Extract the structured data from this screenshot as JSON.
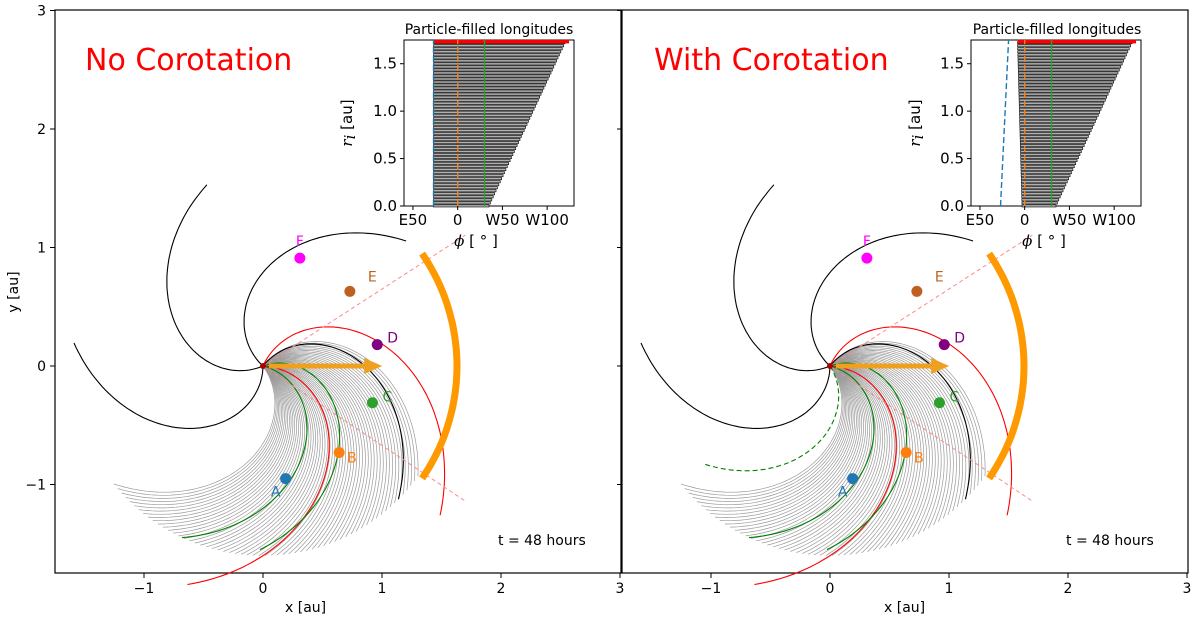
{
  "chart_data": [
    {
      "type": "scatter",
      "panel": "left",
      "title": "No Corotation",
      "xlabel": "x [au]",
      "ylabel": "y [au]",
      "xlim": [
        -1.75,
        3
      ],
      "ylim": [
        -1.75,
        3
      ],
      "xticks": [
        "-1",
        "0",
        "1",
        "2",
        "3"
      ],
      "yticks": [
        "-1",
        "0",
        "1",
        "2",
        "3"
      ],
      "time_label": "t = 48 hours",
      "colors": {
        "A": "#1f77b4",
        "B": "#ff7f0e",
        "C": "#2ca02c",
        "D": "#800080",
        "E": "#c06020",
        "F": "#ff00ff",
        "shock": "#ff9900",
        "field_red": "#ff0000",
        "field_green": "#008000"
      },
      "points": [
        {
          "label": "A",
          "x": 0.19,
          "y": -0.95,
          "color": "#1f77b4"
        },
        {
          "label": "B",
          "x": 0.64,
          "y": -0.73,
          "color": "#ff7f0e"
        },
        {
          "label": "C",
          "x": 0.92,
          "y": -0.31,
          "color": "#2ca02c"
        },
        {
          "label": "D",
          "x": 0.96,
          "y": 0.18,
          "color": "#800080"
        },
        {
          "label": "E",
          "x": 0.73,
          "y": 0.63,
          "color": "#c06020"
        },
        {
          "label": "F",
          "x": 0.31,
          "y": 0.91,
          "color": "#ff00ff"
        }
      ],
      "inset": {
        "title": "Particle-filled longitudes",
        "ylabel_main": "r",
        "ylabel_sub": "i",
        "ylabel_unit": " [au]",
        "xlabel_main": "ϕ",
        "xlabel_unit": " [ ° ]",
        "xticks": [
          "E50",
          "0",
          "W50",
          "W100"
        ],
        "yticks": [
          "0.0",
          "0.5",
          "1.0",
          "1.5"
        ],
        "xlim": [
          -60,
          130
        ],
        "ylim": [
          0,
          1.75
        ],
        "rows": 55,
        "left_start": -27,
        "left_end": -27,
        "right_start": 35,
        "right_end": 120,
        "markers": [
          {
            "phi": -27,
            "color": "#1f77b4",
            "style": "dashed"
          },
          {
            "phi": 0,
            "color": "#ff7f0e",
            "style": "dashed"
          },
          {
            "phi": 30,
            "color": "#2ca02c",
            "style": "solid"
          }
        ]
      }
    },
    {
      "type": "scatter",
      "panel": "right",
      "title": "With Corotation",
      "xlabel": "x [au]",
      "ylabel": "",
      "xlim": [
        -1.75,
        3
      ],
      "ylim": [
        -1.75,
        3
      ],
      "xticks": [
        "-1",
        "0",
        "1",
        "2",
        "3"
      ],
      "yticks": [],
      "time_label": "t = 48 hours",
      "points": [
        {
          "label": "A",
          "x": 0.19,
          "y": -0.95,
          "color": "#1f77b4"
        },
        {
          "label": "B",
          "x": 0.64,
          "y": -0.73,
          "color": "#ff7f0e"
        },
        {
          "label": "C",
          "x": 0.92,
          "y": -0.31,
          "color": "#2ca02c"
        },
        {
          "label": "D",
          "x": 0.96,
          "y": 0.18,
          "color": "#800080"
        },
        {
          "label": "E",
          "x": 0.73,
          "y": 0.63,
          "color": "#c06020"
        },
        {
          "label": "F",
          "x": 0.31,
          "y": 0.91,
          "color": "#ff00ff"
        }
      ],
      "inset": {
        "title": "Particle-filled longitudes",
        "ylabel_main": "r",
        "ylabel_sub": "i",
        "ylabel_unit": " [au]",
        "xlabel_main": "ϕ",
        "xlabel_unit": " [ ° ]",
        "xticks": [
          "E50",
          "0",
          "W50",
          "W100"
        ],
        "yticks": [
          "0.0",
          "0.5",
          "1.0",
          "1.5"
        ],
        "xlim": [
          -60,
          130
        ],
        "ylim": [
          0,
          1.75
        ],
        "rows": 55,
        "left_start": -3,
        "left_end": -8,
        "right_start": 35,
        "right_end": 120,
        "markers": [
          {
            "phi": -27,
            "color": "#1f77b4",
            "style": "dashed"
          },
          {
            "phi": 0,
            "color": "#ff7f0e",
            "style": "dashed"
          },
          {
            "phi": 30,
            "color": "#2ca02c",
            "style": "solid"
          }
        ]
      }
    }
  ]
}
